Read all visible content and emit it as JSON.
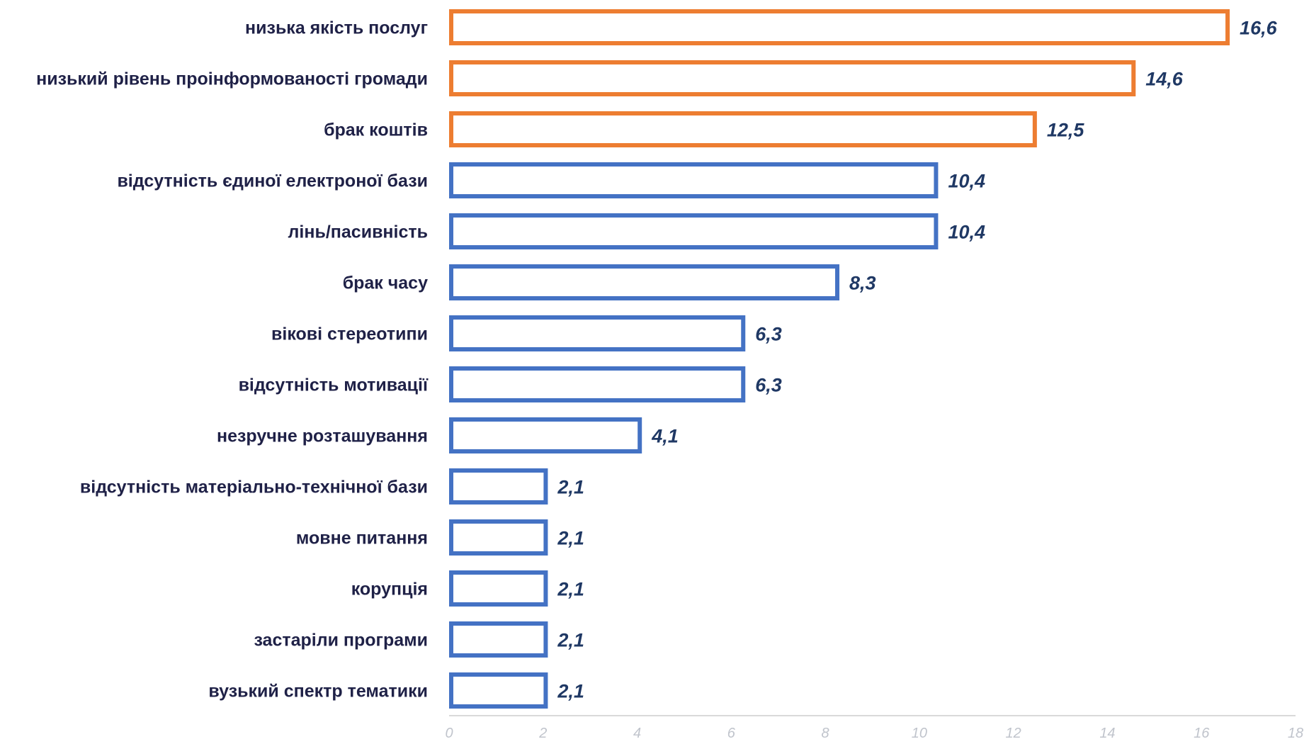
{
  "chart_data": {
    "type": "bar",
    "orientation": "horizontal",
    "categories": [
      "низька якість послуг",
      "низький рівень проінформованості громади",
      "брак коштів",
      "відсутність єдиної електроної бази",
      "лінь/пасивність",
      "брак часу",
      "вікові стереотипи",
      "відсутність мотивації",
      "незручне розташування",
      "відсутність матеріально-технічної бази",
      "мовне питання",
      "корупція",
      "застаріли програми",
      "вузький спектр тематики"
    ],
    "values": [
      16.6,
      14.6,
      12.5,
      10.4,
      10.4,
      8.3,
      6.3,
      6.3,
      4.1,
      2.1,
      2.1,
      2.1,
      2.1,
      2.1
    ],
    "value_labels": [
      "16,6",
      "14,6",
      "12,5",
      "10,4",
      "10,4",
      "8,3",
      "6,3",
      "6,3",
      "4,1",
      "2,1",
      "2,1",
      "2,1",
      "2,1",
      "2,1"
    ],
    "highlight_count": 3,
    "colors": {
      "highlight": "#ed7d31",
      "normal": "#4472c4"
    },
    "xlim": [
      0,
      18
    ],
    "xticks": [
      0,
      2,
      4,
      6,
      8,
      10,
      12,
      14,
      16,
      18
    ],
    "title": "",
    "xlabel": "",
    "ylabel": "",
    "grid": false,
    "legend": "none"
  }
}
